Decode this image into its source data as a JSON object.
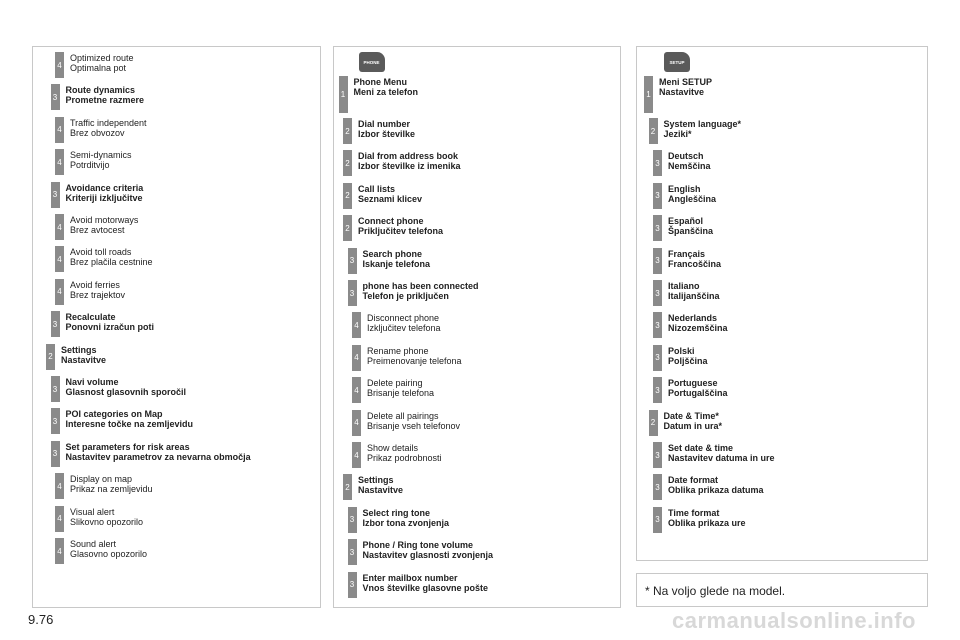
{
  "page_number": "9.76",
  "footnote": "* Na voljo glede na model.",
  "watermark": "carmanualsonline.info",
  "columns": [
    {
      "icon": null,
      "items": [
        {
          "level": "4",
          "bold": false,
          "lines": [
            "Optimized route",
            "Optimalna pot"
          ]
        },
        {
          "level": "3",
          "bold": true,
          "lines": [
            "Route dynamics",
            "Prometne razmere"
          ]
        },
        {
          "level": "4",
          "bold": false,
          "lines": [
            "Traffic independent",
            "Brez obvozov"
          ]
        },
        {
          "level": "4",
          "bold": false,
          "lines": [
            "Semi-dynamics",
            "Potrditvijo"
          ]
        },
        {
          "level": "3",
          "bold": true,
          "lines": [
            "Avoidance criteria",
            "Kriteriji izključitve"
          ]
        },
        {
          "level": "4",
          "bold": false,
          "lines": [
            "Avoid motorways",
            "Brez avtocest"
          ]
        },
        {
          "level": "4",
          "bold": false,
          "lines": [
            "Avoid toll roads",
            "Brez plačila cestnine"
          ]
        },
        {
          "level": "4",
          "bold": false,
          "lines": [
            "Avoid ferries",
            "Brez trajektov"
          ]
        },
        {
          "level": "3",
          "bold": true,
          "lines": [
            "Recalculate",
            "Ponovni izračun poti"
          ]
        },
        {
          "level": "2",
          "bold": true,
          "lines": [
            "Settings",
            "Nastavitve"
          ]
        },
        {
          "level": "3",
          "bold": true,
          "lines": [
            "Navi volume",
            "Glasnost glasovnih sporočil"
          ]
        },
        {
          "level": "3",
          "bold": true,
          "lines": [
            "POI categories on Map",
            "Interesne točke na zemljevidu"
          ]
        },
        {
          "level": "3",
          "bold": true,
          "lines": [
            "Set parameters for risk areas",
            "Nastavitev parametrov za nevarna območja"
          ]
        },
        {
          "level": "4",
          "bold": false,
          "lines": [
            "Display on map",
            "Prikaz na zemljevidu"
          ]
        },
        {
          "level": "4",
          "bold": false,
          "lines": [
            "Visual alert",
            "Slikovno opozorilo"
          ]
        },
        {
          "level": "4",
          "bold": false,
          "lines": [
            "Sound alert",
            "Glasovno opozorilo"
          ]
        }
      ]
    },
    {
      "icon": "PHONE",
      "items": [
        {
          "level": "1",
          "bold": true,
          "lines": [
            "Phone Menu",
            "Meni za telefon"
          ]
        },
        {
          "level": "2",
          "bold": true,
          "lines": [
            "Dial number",
            "Izbor številke"
          ]
        },
        {
          "level": "2",
          "bold": true,
          "lines": [
            "Dial from address book",
            "Izbor številke iz imenika"
          ]
        },
        {
          "level": "2",
          "bold": true,
          "lines": [
            "Call lists",
            "Seznami klicev"
          ]
        },
        {
          "level": "2",
          "bold": true,
          "lines": [
            "Connect phone",
            "Priključitev telefona"
          ]
        },
        {
          "level": "3",
          "bold": true,
          "lines": [
            "Search phone",
            "Iskanje telefona"
          ]
        },
        {
          "level": "3",
          "bold": true,
          "lines": [
            "phone has been connected",
            "Telefon je priključen"
          ]
        },
        {
          "level": "4",
          "bold": false,
          "lines": [
            "Disconnect phone",
            "Izključitev telefona"
          ]
        },
        {
          "level": "4",
          "bold": false,
          "lines": [
            "Rename phone",
            "Preimenovanje telefona"
          ]
        },
        {
          "level": "4",
          "bold": false,
          "lines": [
            "Delete pairing",
            "Brisanje telefona"
          ]
        },
        {
          "level": "4",
          "bold": false,
          "lines": [
            "Delete all pairings",
            "Brisanje vseh telefonov"
          ]
        },
        {
          "level": "4",
          "bold": false,
          "lines": [
            "Show details",
            "Prikaz podrobnosti"
          ]
        },
        {
          "level": "2",
          "bold": true,
          "lines": [
            "Settings",
            "Nastavitve"
          ]
        },
        {
          "level": "3",
          "bold": true,
          "lines": [
            "Select ring tone",
            "Izbor tona zvonjenja"
          ]
        },
        {
          "level": "3",
          "bold": true,
          "lines": [
            "Phone / Ring tone volume",
            "Nastavitev glasnosti zvonjenja"
          ]
        },
        {
          "level": "3",
          "bold": true,
          "lines": [
            "Enter mailbox number",
            "Vnos številke glasovne pošte"
          ]
        }
      ]
    },
    {
      "icon": "SETUP",
      "items": [
        {
          "level": "1",
          "bold": true,
          "lines": [
            "Meni SETUP",
            "Nastavitve"
          ]
        },
        {
          "level": "2",
          "bold": true,
          "lines": [
            "System language*",
            "Jeziki*"
          ]
        },
        {
          "level": "3",
          "bold": true,
          "lines": [
            "Deutsch",
            "Nemščina"
          ]
        },
        {
          "level": "3",
          "bold": true,
          "lines": [
            "English",
            "Angleščina"
          ]
        },
        {
          "level": "3",
          "bold": true,
          "lines": [
            "Español",
            "Španščina"
          ]
        },
        {
          "level": "3",
          "bold": true,
          "lines": [
            "Français",
            "Francoščina"
          ]
        },
        {
          "level": "3",
          "bold": true,
          "lines": [
            "Italiano",
            "Italijanščina"
          ]
        },
        {
          "level": "3",
          "bold": true,
          "lines": [
            "Nederlands",
            "Nizozemščina"
          ]
        },
        {
          "level": "3",
          "bold": true,
          "lines": [
            "Polski",
            "Poljščina"
          ]
        },
        {
          "level": "3",
          "bold": true,
          "lines": [
            "Portuguese",
            "Portugalščina"
          ]
        },
        {
          "level": "2",
          "bold": true,
          "lines": [
            "Date & Time*",
            "Datum in ura*"
          ]
        },
        {
          "level": "3",
          "bold": true,
          "lines": [
            "Set date & time",
            "Nastavitev datuma in ure"
          ]
        },
        {
          "level": "3",
          "bold": true,
          "lines": [
            "Date format",
            "Oblika prikaza datuma"
          ]
        },
        {
          "level": "3",
          "bold": true,
          "lines": [
            "Time format",
            "Oblika prikaza ure"
          ]
        }
      ]
    }
  ]
}
